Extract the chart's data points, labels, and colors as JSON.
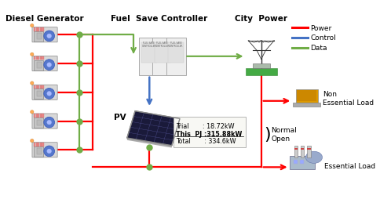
{
  "bg_color": "#ffffff",
  "diesel_gen_label": "Diesel Generator",
  "fuel_save_label": "Fuel  Save Controller",
  "city_power_label": "City  Power",
  "pv_label": "PV",
  "non_essential_label": "Non\nEssential Load",
  "essential_label": "Essential Load",
  "normal_open_label": "Normal\nOpen",
  "legend_power": "Power",
  "legend_control": "Control",
  "legend_data": "Data",
  "trial_text": "Trial       : 18.72kW",
  "thispj_text": "This  PJ :315.88kW",
  "total_text": "Total       : 334.6kW",
  "color_power": "#ff0000",
  "color_control": "#4472c4",
  "color_data": "#70ad47",
  "font_size_title": 7.5,
  "font_size_label": 6.5,
  "font_size_info": 5.8,
  "lw": 1.6,
  "dot_size": 5
}
